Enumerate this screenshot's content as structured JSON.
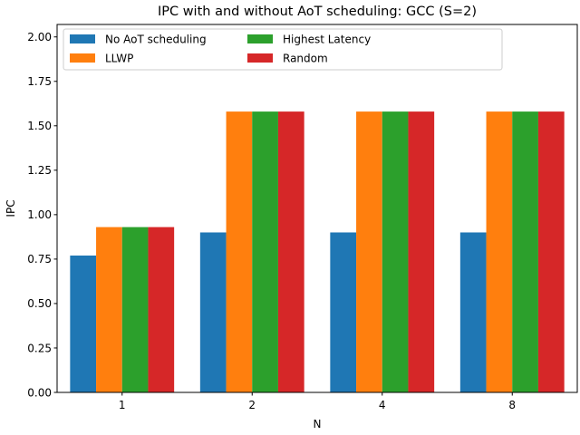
{
  "chart_data": {
    "type": "bar",
    "title": "IPC with and without AoT scheduling: GCC (S=2)",
    "xlabel": "N",
    "ylabel": "IPC",
    "categories": [
      "1",
      "2",
      "4",
      "8"
    ],
    "ylim": [
      0,
      2.07
    ],
    "yticks": [
      "0.00",
      "0.25",
      "0.50",
      "0.75",
      "1.00",
      "1.25",
      "1.50",
      "1.75",
      "2.00"
    ],
    "legend_position": "top-left",
    "legend_columns": 3,
    "grid": false,
    "series": [
      {
        "name": "No AoT scheduling",
        "color": "#1f77b4",
        "values": [
          0.77,
          0.9,
          0.9,
          0.9
        ]
      },
      {
        "name": "LLWP",
        "color": "#ff7f0e",
        "values": [
          0.93,
          1.58,
          1.58,
          1.58
        ]
      },
      {
        "name": "Highest Latency",
        "color": "#2ca02c",
        "values": [
          0.93,
          1.58,
          1.58,
          1.58
        ]
      },
      {
        "name": "Random",
        "color": "#d62728",
        "values": [
          0.93,
          1.58,
          1.58,
          1.58
        ]
      }
    ]
  }
}
